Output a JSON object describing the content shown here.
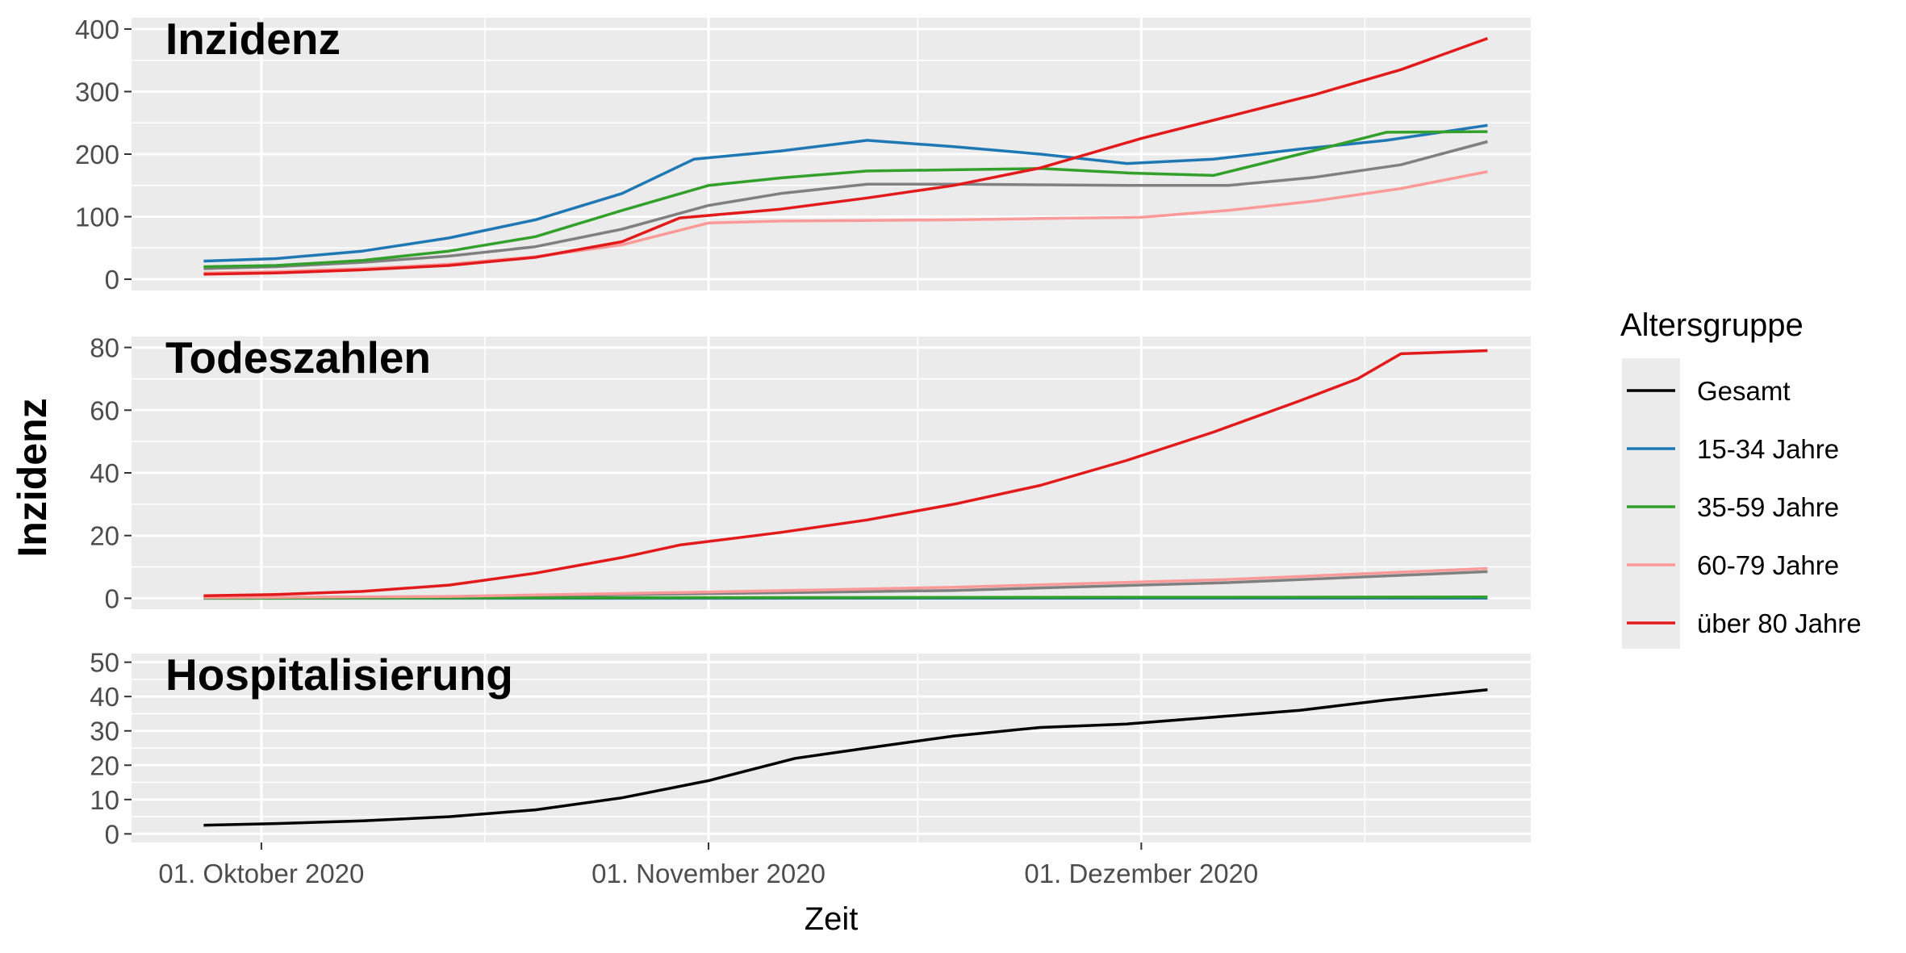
{
  "chart_data": {
    "type": "line",
    "ylabel": "Inzidenz",
    "xlabel": "Zeit",
    "x_date_range": [
      "2020-09-22",
      "2020-12-28"
    ],
    "x_ticks": [
      {
        "date": "2020-10-01",
        "label": "01. Oktober 2020"
      },
      {
        "date": "2020-11-01",
        "label": "01. November 2020"
      },
      {
        "date": "2020-12-01",
        "label": "01. Dezember 2020"
      }
    ],
    "grid": true,
    "legend": {
      "title": "Altersgruppe",
      "position": "right",
      "entries": [
        {
          "name": "Gesamt",
          "color": "#000000"
        },
        {
          "name": "15-34 Jahre",
          "color": "#1f78b4"
        },
        {
          "name": "35-59 Jahre",
          "color": "#33a02c"
        },
        {
          "name": "60-79 Jahre",
          "color": "#fb9a99"
        },
        {
          "name": "über 80 Jahre",
          "color": "#e31a1c"
        }
      ]
    },
    "panels": [
      {
        "title": "Inzidenz",
        "ylim": [
          -18,
          418
        ],
        "yticks": [
          0,
          100,
          200,
          300,
          400
        ],
        "series": [
          {
            "name": "Gesamt",
            "color": "#808080",
            "x": [
              "2020-09-27",
              "2020-10-02",
              "2020-10-08",
              "2020-10-14",
              "2020-10-20",
              "2020-10-26",
              "2020-11-01",
              "2020-11-06",
              "2020-11-12",
              "2020-11-18",
              "2020-11-24",
              "2020-12-01",
              "2020-12-07",
              "2020-12-13",
              "2020-12-19",
              "2020-12-25"
            ],
            "values": [
              17,
              20,
              27,
              37,
              52,
              80,
              118,
              137,
              152,
              152,
              151,
              150,
              150,
              163,
              183,
              220
            ]
          },
          {
            "name": "15-34 Jahre",
            "color": "#1f78b4",
            "x": [
              "2020-09-27",
              "2020-10-02",
              "2020-10-08",
              "2020-10-14",
              "2020-10-20",
              "2020-10-26",
              "2020-10-31",
              "2020-11-06",
              "2020-11-12",
              "2020-11-18",
              "2020-11-24",
              "2020-11-30",
              "2020-12-06",
              "2020-12-12",
              "2020-12-18",
              "2020-12-25"
            ],
            "values": [
              29,
              33,
              45,
              66,
              95,
              137,
              192,
              205,
              222,
              212,
              200,
              185,
              192,
              208,
              222,
              246
            ]
          },
          {
            "name": "35-59 Jahre",
            "color": "#33a02c",
            "x": [
              "2020-09-27",
              "2020-10-02",
              "2020-10-08",
              "2020-10-14",
              "2020-10-20",
              "2020-10-26",
              "2020-11-01",
              "2020-11-06",
              "2020-11-12",
              "2020-11-18",
              "2020-11-24",
              "2020-11-30",
              "2020-12-06",
              "2020-12-12",
              "2020-12-18",
              "2020-12-25"
            ],
            "values": [
              20,
              22,
              30,
              45,
              68,
              110,
              150,
              162,
              173,
              175,
              177,
              170,
              166,
              200,
              235,
              236
            ]
          },
          {
            "name": "60-79 Jahre",
            "color": "#fb9a99",
            "x": [
              "2020-09-27",
              "2020-10-02",
              "2020-10-08",
              "2020-10-14",
              "2020-10-20",
              "2020-10-26",
              "2020-11-01",
              "2020-11-06",
              "2020-11-12",
              "2020-11-18",
              "2020-11-24",
              "2020-12-01",
              "2020-12-07",
              "2020-12-13",
              "2020-12-19",
              "2020-12-25"
            ],
            "values": [
              10,
              12,
              17,
              24,
              36,
              55,
              90,
              93,
              94,
              95,
              97,
              99,
              110,
              125,
              145,
              172
            ]
          },
          {
            "name": "über 80 Jahre",
            "color": "#e31a1c",
            "x": [
              "2020-09-27",
              "2020-10-02",
              "2020-10-08",
              "2020-10-14",
              "2020-10-20",
              "2020-10-26",
              "2020-10-30",
              "2020-11-06",
              "2020-11-12",
              "2020-11-18",
              "2020-11-24",
              "2020-12-01",
              "2020-12-07",
              "2020-12-13",
              "2020-12-19",
              "2020-12-25"
            ],
            "values": [
              8,
              10,
              15,
              22,
              35,
              60,
              98,
              112,
              130,
              150,
              178,
              225,
              260,
              295,
              335,
              385
            ]
          }
        ]
      },
      {
        "title": "Todeszahlen",
        "ylim": [
          -3.5,
          83.5
        ],
        "yticks": [
          0,
          20,
          40,
          60,
          80
        ],
        "series": [
          {
            "name": "Gesamt",
            "color": "#808080",
            "x": [
              "2020-09-27",
              "2020-10-14",
              "2020-11-01",
              "2020-11-18",
              "2020-12-07",
              "2020-12-25"
            ],
            "values": [
              0.2,
              0.5,
              1.5,
              2.5,
              5,
              8.5
            ]
          },
          {
            "name": "15-34 Jahre",
            "color": "#1f78b4",
            "x": [
              "2020-09-27",
              "2020-12-25"
            ],
            "values": [
              0.0,
              0.05
            ]
          },
          {
            "name": "35-59 Jahre",
            "color": "#33a02c",
            "x": [
              "2020-09-27",
              "2020-11-01",
              "2020-12-25"
            ],
            "values": [
              0.0,
              0.2,
              0.4
            ]
          },
          {
            "name": "60-79 Jahre",
            "color": "#fb9a99",
            "x": [
              "2020-09-27",
              "2020-10-14",
              "2020-11-01",
              "2020-11-18",
              "2020-12-07",
              "2020-12-25"
            ],
            "values": [
              0.2,
              0.6,
              2,
              3.5,
              6,
              9.5
            ]
          },
          {
            "name": "über 80 Jahre",
            "color": "#e31a1c",
            "x": [
              "2020-09-27",
              "2020-10-02",
              "2020-10-08",
              "2020-10-14",
              "2020-10-20",
              "2020-10-26",
              "2020-10-30",
              "2020-11-06",
              "2020-11-12",
              "2020-11-18",
              "2020-11-24",
              "2020-11-30",
              "2020-12-06",
              "2020-12-12",
              "2020-12-16",
              "2020-12-19",
              "2020-12-25"
            ],
            "values": [
              0.8,
              1.2,
              2.2,
              4.2,
              8.0,
              13.0,
              17.0,
              21.0,
              25.0,
              30.0,
              36.0,
              44.0,
              53.0,
              63.0,
              70.0,
              78.0,
              79.0
            ]
          }
        ]
      },
      {
        "title": "Hospitalisierung",
        "ylim": [
          -2.5,
          52.5
        ],
        "yticks": [
          0,
          10,
          20,
          30,
          40,
          50
        ],
        "series": [
          {
            "name": "Gesamt",
            "color": "#000000",
            "x": [
              "2020-09-27",
              "2020-10-02",
              "2020-10-08",
              "2020-10-14",
              "2020-10-20",
              "2020-10-26",
              "2020-11-01",
              "2020-11-07",
              "2020-11-12",
              "2020-11-18",
              "2020-11-24",
              "2020-11-30",
              "2020-12-06",
              "2020-12-12",
              "2020-12-18",
              "2020-12-25"
            ],
            "values": [
              2.5,
              3.0,
              3.8,
              5.0,
              7.0,
              10.5,
              15.5,
              22.0,
              25.0,
              28.5,
              31.0,
              32.0,
              34.0,
              36.0,
              39.0,
              42.0
            ]
          }
        ]
      }
    ]
  }
}
